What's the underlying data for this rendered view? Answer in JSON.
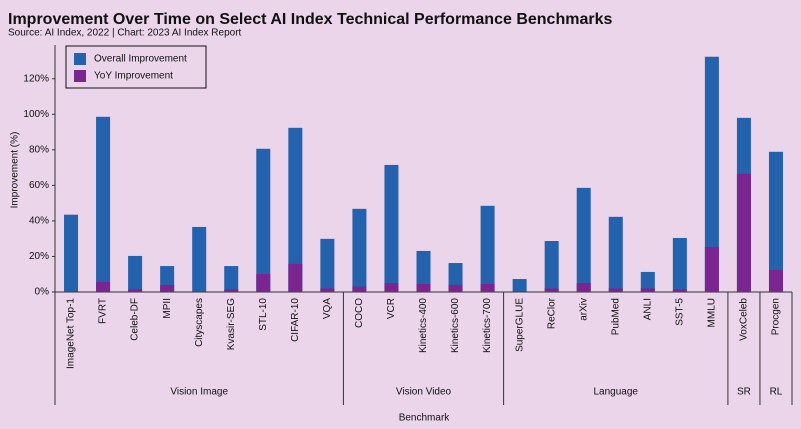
{
  "chart_data": {
    "type": "bar",
    "title": "Improvement Over Time on Select AI Index Technical Performance Benchmarks",
    "subtitle": "Source: AI Index, 2022 | Chart: 2023 AI Index Report",
    "x_label": "Benchmark",
    "y_label": "Improvement (%)",
    "categories": [
      "ImageNet Top-1",
      "FVRT",
      "Celeb-DF",
      "MPII",
      "Cityscapes",
      "Kvasir-SEG",
      "STL-10",
      "CIFAR-10",
      "VQA",
      "COCO",
      "VCR",
      "Kinetics-400",
      "Kinetics-600",
      "Kinetics-700",
      "SuperGLUE",
      "ReClor",
      "arXiv",
      "PubMed",
      "ANLI",
      "SST-5",
      "MMLU",
      "VoxCeleb",
      "Procgen"
    ],
    "groups": [
      {
        "name": "Vision Image",
        "categories": [
          "ImageNet Top-1",
          "FVRT",
          "Celeb-DF",
          "MPII",
          "Cityscapes",
          "Kvasir-SEG",
          "STL-10",
          "CIFAR-10",
          "VQA"
        ]
      },
      {
        "name": "Vision Video",
        "categories": [
          "COCO",
          "VCR",
          "Kinetics-400",
          "Kinetics-600",
          "Kinetics-700"
        ]
      },
      {
        "name": "Language",
        "categories": [
          "SuperGLUE",
          "ReClor",
          "arXiv",
          "PubMed",
          "ANLI",
          "SST-5",
          "MMLU"
        ]
      },
      {
        "name": "SR",
        "categories": [
          "VoxCeleb"
        ]
      },
      {
        "name": "RL",
        "categories": [
          "Procgen"
        ]
      }
    ],
    "series": [
      {
        "name": "Overall Improvement",
        "color": "#2462ae",
        "values": [
          43.5,
          98.6,
          20.3,
          14.6,
          36.6,
          14.6,
          80.6,
          92.4,
          29.9,
          46.8,
          71.5,
          23.1,
          16.3,
          48.5,
          7.3,
          28.7,
          58.6,
          42.3,
          11.3,
          30.4,
          132.4,
          98,
          78.9
        ]
      },
      {
        "name": "YoY Improvement",
        "color": "#7b2591",
        "values": [
          0.5,
          5.6,
          1.5,
          4,
          0.5,
          1.5,
          10.1,
          15.8,
          2,
          3,
          5,
          4.5,
          4,
          4.5,
          0.5,
          2,
          5,
          2,
          2,
          1.5,
          25.4,
          66.5,
          12.4
        ]
      }
    ],
    "ylim": [
      0,
      139
    ],
    "yticks": [
      {
        "value": 0,
        "label": "0%"
      },
      {
        "value": 20,
        "label": "20%"
      },
      {
        "value": 40,
        "label": "40%"
      },
      {
        "value": 60,
        "label": "60%"
      },
      {
        "value": 80,
        "label": "80%"
      },
      {
        "value": 100,
        "label": "100%"
      },
      {
        "value": 120,
        "label": "120%"
      }
    ],
    "legend": "upper left",
    "overlap": true
  }
}
